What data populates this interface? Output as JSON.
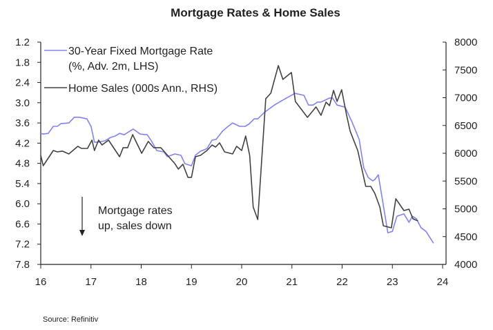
{
  "chart_data": {
    "type": "line",
    "title": "Mortgage Rates & Home Sales",
    "source": "Source: Refinitiv",
    "annotation": [
      "Mortgage rates",
      "up, sales down"
    ],
    "legend_position": "top-left",
    "grid": false,
    "x_axis": {
      "ticks": [
        "16",
        "17",
        "18",
        "19",
        "20",
        "21",
        "22",
        "23",
        "24"
      ],
      "range": [
        16,
        24
      ]
    },
    "y_left": {
      "range": [
        1.2,
        7.8
      ],
      "inverted": true,
      "ticks": [
        "1.2",
        "1.8",
        "2.4",
        "3.0",
        "3.6",
        "4.2",
        "4.8",
        "5.4",
        "6.0",
        "6.6",
        "7.2",
        "7.8"
      ]
    },
    "y_right": {
      "range": [
        4000,
        8000
      ],
      "ticks": [
        "8000",
        "7500",
        "7000",
        "6500",
        "6000",
        "5500",
        "5000",
        "4500",
        "4000"
      ]
    },
    "series": [
      {
        "name": "30-Year Fixed Mortgage Rate",
        "legend_line2": "(%, Adv. 2m, LHS)",
        "axis": "left",
        "color": "#8080ff",
        "x": [
          16.0,
          16.05,
          16.15,
          16.25,
          16.33,
          16.4,
          16.56,
          16.67,
          16.77,
          16.92,
          17.0,
          17.07,
          17.15,
          17.28,
          17.39,
          17.48,
          17.57,
          17.66,
          17.84,
          17.98,
          18.12,
          18.21,
          18.31,
          18.45,
          18.52,
          18.67,
          18.79,
          18.87,
          19.0,
          19.08,
          19.18,
          19.31,
          19.41,
          19.49,
          19.62,
          19.73,
          19.82,
          19.96,
          20.07,
          20.14,
          20.25,
          20.32,
          20.45,
          20.65,
          20.82,
          21.06,
          21.24,
          21.33,
          21.42,
          21.51,
          21.58,
          21.75,
          21.81,
          21.9,
          22.06,
          22.2,
          22.34,
          22.43,
          22.52,
          22.61,
          22.65,
          22.72,
          22.91,
          23.0,
          23.09,
          23.23,
          23.33,
          23.4,
          23.48,
          23.57,
          23.67,
          23.82
        ],
        "y": [
          3.91,
          3.93,
          3.91,
          3.7,
          3.7,
          3.62,
          3.6,
          3.43,
          3.43,
          3.48,
          3.7,
          4.17,
          4.17,
          4.13,
          4.03,
          3.99,
          3.91,
          3.95,
          3.78,
          3.93,
          3.95,
          4.15,
          4.42,
          4.46,
          4.6,
          4.52,
          4.56,
          4.81,
          4.87,
          4.56,
          4.44,
          4.36,
          4.11,
          4.09,
          3.84,
          3.7,
          3.6,
          3.7,
          3.7,
          3.64,
          3.48,
          3.48,
          3.29,
          3.07,
          2.92,
          2.72,
          2.78,
          3.07,
          3.07,
          2.98,
          2.98,
          2.86,
          2.86,
          3.07,
          3.13,
          3.58,
          4.09,
          4.93,
          5.22,
          5.32,
          5.28,
          5.14,
          6.86,
          6.82,
          6.37,
          6.3,
          6.55,
          6.37,
          6.45,
          6.71,
          6.82,
          7.17
        ]
      },
      {
        "name": "Home Sales (000s Ann., RHS)",
        "axis": "right",
        "color": "#404040",
        "x": [
          16.0,
          16.05,
          16.25,
          16.33,
          16.43,
          16.56,
          16.74,
          16.81,
          16.93,
          17.02,
          17.07,
          17.15,
          17.22,
          17.35,
          17.57,
          17.64,
          17.73,
          17.83,
          18.01,
          18.14,
          18.25,
          18.39,
          18.67,
          18.74,
          18.83,
          18.93,
          19.0,
          19.08,
          19.18,
          19.31,
          19.41,
          19.48,
          19.56,
          19.66,
          19.82,
          19.9,
          20.0,
          20.08,
          20.16,
          20.23,
          20.32,
          20.48,
          20.58,
          20.73,
          20.82,
          20.99,
          21.07,
          21.31,
          21.48,
          21.58,
          21.68,
          21.75,
          21.83,
          21.9,
          21.99,
          22.09,
          22.16,
          22.31,
          22.47,
          22.57,
          22.65,
          22.75,
          22.82,
          22.98,
          23.07,
          23.23,
          23.33,
          23.41,
          23.51
        ],
        "y": [
          5963,
          5777,
          6050,
          6025,
          6038,
          5988,
          6125,
          6087,
          6087,
          6236,
          6050,
          6236,
          6149,
          6236,
          5938,
          6100,
          6100,
          6336,
          6000,
          6212,
          6100,
          6100,
          5814,
          5715,
          5802,
          5566,
          5566,
          5938,
          5963,
          6050,
          6149,
          6112,
          6187,
          6025,
          5988,
          6125,
          6050,
          6311,
          5963,
          5032,
          4808,
          6982,
          7081,
          7578,
          7329,
          7454,
          6932,
          6646,
          6833,
          6683,
          6919,
          6857,
          7131,
          6932,
          7143,
          6683,
          6398,
          6050,
          5404,
          5404,
          5280,
          5032,
          4696,
          4659,
          5181,
          4969,
          4994,
          4820,
          4783
        ]
      }
    ]
  }
}
